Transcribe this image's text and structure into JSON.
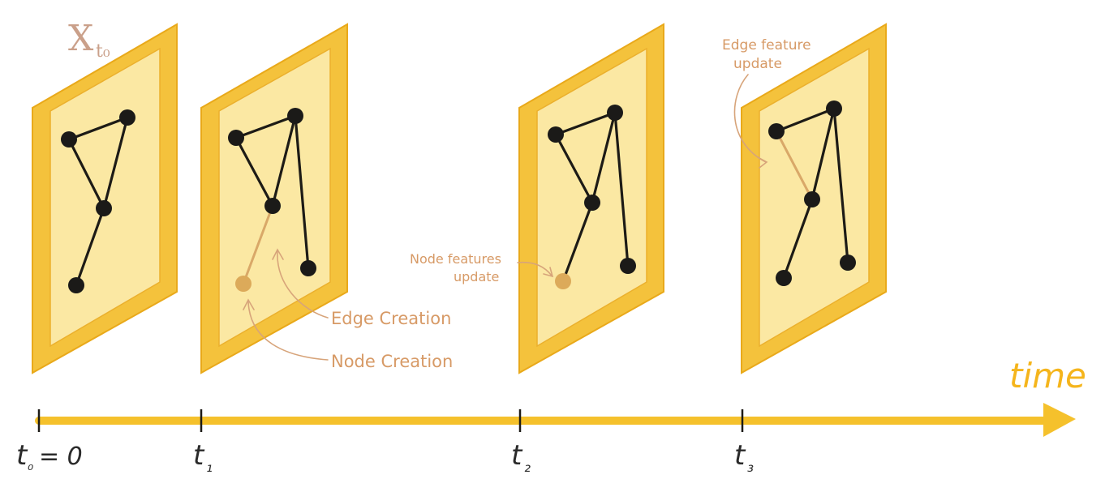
{
  "title_label": {
    "main": "X",
    "sub": "t₀"
  },
  "axis": {
    "label": "time",
    "ticks": [
      {
        "main": "t",
        "sub": "₀",
        "suffix": "= 0"
      },
      {
        "main": "t",
        "sub": "₁",
        "suffix": ""
      },
      {
        "main": "t",
        "sub": "₂",
        "suffix": ""
      },
      {
        "main": "t",
        "sub": "₃",
        "suffix": ""
      }
    ]
  },
  "annotations": {
    "edge_creation": "Edge Creation",
    "node_creation": "Node Creation",
    "node_features_line1": "Node features",
    "node_features_line2": "update",
    "edge_feature_line1": "Edge feature",
    "edge_feature_line2": "update"
  },
  "colors": {
    "frame": "#f4c23c",
    "frame_inner": "#fbe8a3",
    "axis": "#f5c12c",
    "node": "#1b1a18",
    "highlight": "#dcaa5a",
    "annotation_text": "#d79a66"
  }
}
